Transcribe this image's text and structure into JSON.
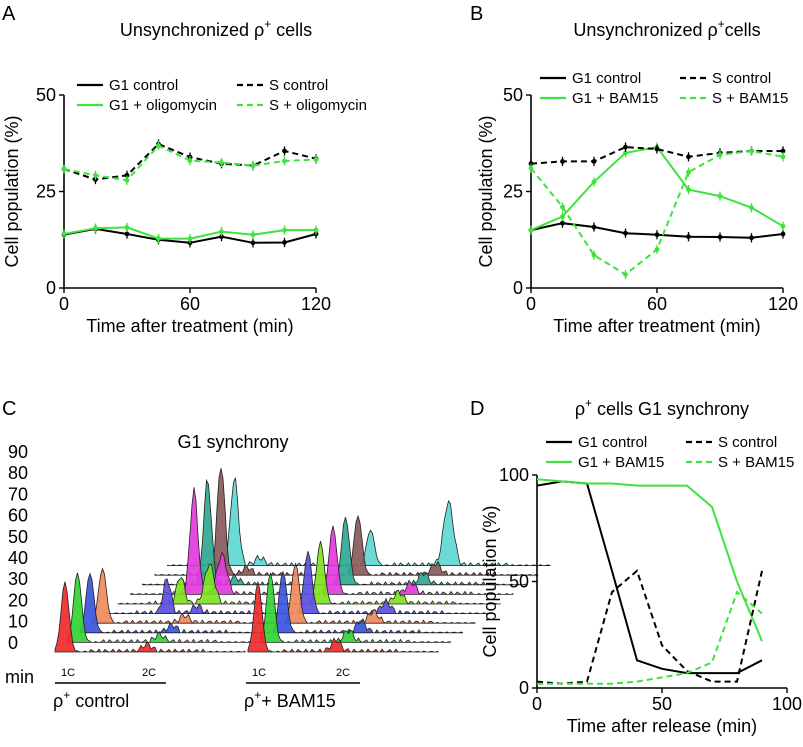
{
  "panel_letters": {
    "a": "A",
    "b": "B",
    "c": "C",
    "d": "D"
  },
  "colors": {
    "control": "#000000",
    "treated": "#3fe23f"
  },
  "chart_data": [
    {
      "id": "A",
      "type": "line",
      "title_parts": {
        "pre": "Unsynchronized ρ",
        "sup": "+",
        "post": " cells"
      },
      "xlabel": "Time after treatment (min)",
      "ylabel": "Cell population (%)",
      "xlim": [
        0,
        120
      ],
      "ylim": [
        0,
        50
      ],
      "xticks": [
        "0",
        "60",
        "120"
      ],
      "yticks": [
        "0",
        "25",
        "50"
      ],
      "x": [
        0,
        15,
        30,
        45,
        60,
        75,
        90,
        105,
        120
      ],
      "series": [
        {
          "name": "G1 control",
          "color": "#000000",
          "dash": false,
          "values": [
            13.8,
            15.3,
            14.0,
            12.5,
            11.7,
            13.3,
            11.7,
            11.8,
            14.0
          ]
        },
        {
          "name": "G1 + oligomycin",
          "color": "#3fe23f",
          "dash": false,
          "values": [
            14.0,
            15.5,
            15.7,
            12.8,
            12.8,
            14.6,
            13.8,
            15.0,
            15.0
          ]
        },
        {
          "name": "S control",
          "color": "#000000",
          "dash": true,
          "values": [
            30.8,
            28.1,
            29.2,
            37.3,
            33.9,
            32.2,
            31.7,
            35.5,
            33.5
          ]
        },
        {
          "name": "S + oligomycin",
          "color": "#3fe23f",
          "dash": true,
          "values": [
            30.8,
            29.2,
            27.9,
            36.9,
            33.0,
            32.5,
            31.7,
            32.9,
            33.3
          ]
        }
      ]
    },
    {
      "id": "B",
      "type": "line",
      "title_parts": {
        "pre": "Unsynchronized ρ",
        "sup": "+",
        "post": "cells"
      },
      "xlabel": "Time after treatment (min)",
      "ylabel": "Cell population (%)",
      "xlim": [
        0,
        120
      ],
      "ylim": [
        0,
        50
      ],
      "xticks": [
        "0",
        "60",
        "120"
      ],
      "yticks": [
        "0",
        "25",
        "50"
      ],
      "x": [
        0,
        15,
        30,
        45,
        60,
        75,
        90,
        105,
        120
      ],
      "series": [
        {
          "name": "G1 control",
          "color": "#000000",
          "dash": false,
          "values": [
            15.0,
            16.8,
            15.8,
            14.2,
            13.8,
            13.3,
            13.2,
            13.0,
            14.0
          ]
        },
        {
          "name": "G1 + BAM15",
          "color": "#3fe23f",
          "dash": false,
          "values": [
            15.0,
            18.5,
            27.5,
            35.0,
            36.5,
            25.5,
            23.8,
            20.8,
            16.0
          ]
        },
        {
          "name": "S control",
          "color": "#000000",
          "dash": true,
          "values": [
            32.2,
            32.8,
            32.8,
            36.5,
            36.0,
            34.0,
            35.0,
            35.5,
            35.5
          ]
        },
        {
          "name": "S + BAM15",
          "color": "#3fe23f",
          "dash": true,
          "values": [
            31.0,
            21.0,
            8.5,
            3.5,
            10.0,
            30.0,
            34.5,
            35.5,
            34.0
          ]
        }
      ]
    },
    {
      "id": "C",
      "type": "histogram-stack",
      "title": "G1 synchrony",
      "time_labels": [
        "90",
        "80",
        "70",
        "60",
        "50",
        "40",
        "30",
        "20",
        "10",
        "0"
      ],
      "time_colors": [
        "#5fd8d2",
        "#8a5a5a",
        "#2fa894",
        "#e43ae0",
        "#7ee21f",
        "#5b4fe0",
        "#f08a5d",
        "#3a55e0",
        "#33d233",
        "#ee2a2a"
      ],
      "unit_label": "min",
      "ploidy_labels": [
        "1C",
        "2C"
      ],
      "groups": [
        {
          "label_pre": "ρ",
          "sup": "+",
          "label_post": " control"
        },
        {
          "label_pre": "ρ",
          "sup": "+",
          "label_post": "+ BAM15"
        }
      ]
    },
    {
      "id": "D",
      "type": "line",
      "title_parts": {
        "pre": "ρ",
        "sup": "+",
        "post": " cells G1 synchrony"
      },
      "xlabel": "Time after release (min)",
      "ylabel": "Cell population (%)",
      "xlim": [
        0,
        100
      ],
      "ylim": [
        0,
        100
      ],
      "xticks": [
        "0",
        "50",
        "100"
      ],
      "yticks": [
        "0",
        "50",
        "100"
      ],
      "series": [
        {
          "name": "G1 control",
          "color": "#000000",
          "dash": false,
          "x": [
            0,
            10,
            20,
            30,
            40,
            50,
            60,
            70,
            80,
            90
          ],
          "values": [
            95,
            97,
            96,
            55,
            13,
            9,
            7,
            7,
            7,
            13
          ]
        },
        {
          "name": "G1 + BAM15",
          "color": "#3fe23f",
          "dash": false,
          "x": [
            0,
            10,
            20,
            30,
            40,
            50,
            60,
            70,
            80,
            90
          ],
          "values": [
            98,
            97,
            96,
            96,
            95,
            95,
            95,
            85,
            50,
            22
          ]
        },
        {
          "name": "S control",
          "color": "#000000",
          "dash": true,
          "x": [
            0,
            10,
            20,
            30,
            40,
            50,
            60,
            70,
            80,
            90
          ],
          "values": [
            3,
            2,
            3,
            45,
            55,
            20,
            8,
            3,
            3,
            55
          ]
        },
        {
          "name": "S + BAM15",
          "color": "#3fe23f",
          "dash": true,
          "x": [
            0,
            10,
            20,
            30,
            40,
            50,
            60,
            70,
            80,
            90
          ],
          "values": [
            2,
            2,
            2,
            2,
            3,
            5,
            7,
            12,
            45,
            35
          ]
        }
      ]
    }
  ]
}
